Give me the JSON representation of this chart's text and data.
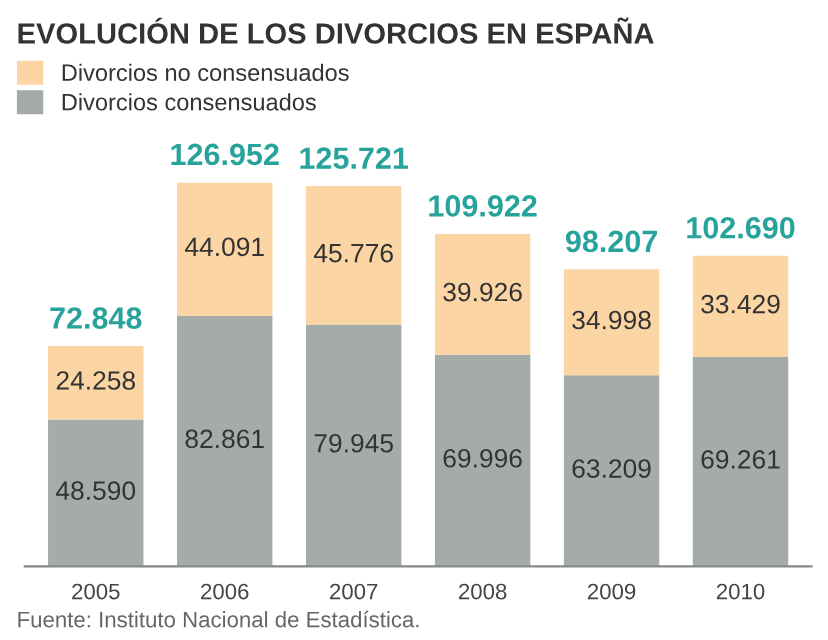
{
  "chart_data": {
    "type": "bar",
    "title": "EVOLUCIÓN DE LOS DIVORCIOS EN ESPAÑA",
    "categories": [
      "2005",
      "2006",
      "2007",
      "2008",
      "2009",
      "2010"
    ],
    "stacked": true,
    "series": [
      {
        "name": "Divorcios consensuados",
        "color": "#a5aca7",
        "values": [
          48590,
          82861,
          79945,
          69996,
          63209,
          69261
        ],
        "value_labels": [
          "48.590",
          "82.861",
          "79.945",
          "69.996",
          "63.209",
          "69.261"
        ]
      },
      {
        "name": "Divorcios no consensuados",
        "color": "#fbd5a3",
        "values": [
          24258,
          44091,
          45776,
          39926,
          34998,
          33429
        ],
        "value_labels": [
          "24.258",
          "44.091",
          "45.776",
          "39.926",
          "34.998",
          "33.429"
        ]
      }
    ],
    "totals": [
      "72.848",
      "126.952",
      "125.721",
      "109.922",
      "98.207",
      "102.690"
    ],
    "legend": "top left",
    "grid": false,
    "annotations": [
      "Fuente: Instituto Nacional de Estadística."
    ]
  }
}
